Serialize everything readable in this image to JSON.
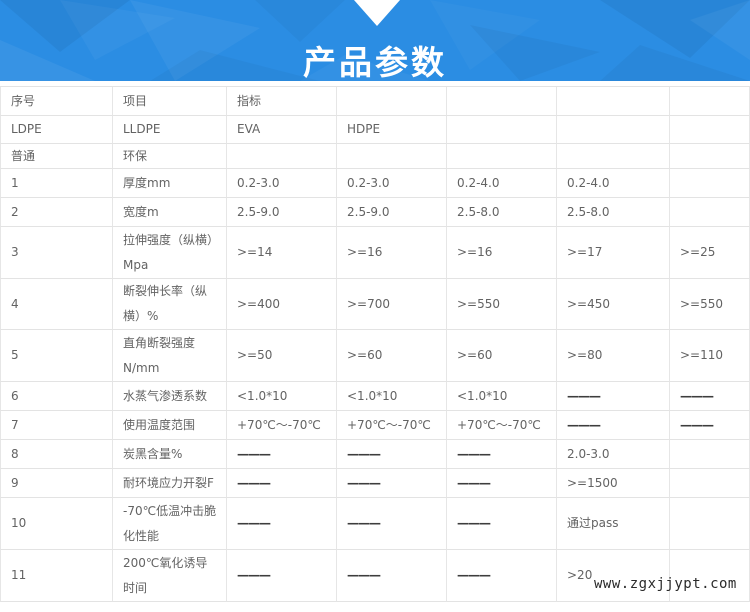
{
  "banner": {
    "title": "产品参数",
    "background_color": "#2b8de3",
    "title_color": "#ffffff",
    "arrow_color": "#ffffff"
  },
  "watermark": {
    "text": "www.zgxjjypt.com",
    "color": "#2a2a2a"
  },
  "table": {
    "rows": [
      [
        "序号",
        "项目",
        "指标",
        "",
        "",
        "",
        ""
      ],
      [
        "LDPE",
        "LLDPE",
        "EVA",
        "HDPE",
        "",
        "",
        ""
      ],
      [
        "普通",
        "环保",
        "",
        "",
        "",
        "",
        ""
      ],
      [
        "1",
        "厚度mm",
        "0.2-3.0",
        "0.2-3.0",
        "0.2-4.0",
        "0.2-4.0",
        ""
      ],
      [
        "2",
        "宽度m",
        "2.5-9.0",
        "2.5-9.0",
        "2.5-8.0",
        "2.5-8.0",
        ""
      ],
      [
        "3",
        "拉伸强度（纵横）Mpa",
        ">=14",
        ">=16",
        ">=16",
        ">=17",
        ">=25"
      ],
      [
        "4",
        "断裂伸长率（纵横）%",
        ">=400",
        ">=700",
        ">=550",
        ">=450",
        ">=550"
      ],
      [
        "5",
        "直角断裂强度N/mm",
        ">=50",
        ">=60",
        ">=60",
        ">=80",
        ">=110"
      ],
      [
        "6",
        "水蒸气渗透系数",
        "<1.0*10",
        "<1.0*10",
        "<1.0*10",
        "———",
        "———"
      ],
      [
        "7",
        "使用温度范围",
        "+70℃～-70℃",
        "+70℃～-70℃",
        "+70℃～-70℃",
        "———",
        "———"
      ],
      [
        "8",
        "炭黑含量%",
        "———",
        "———",
        "———",
        "2.0-3.0",
        ""
      ],
      [
        "9",
        "耐环境应力开裂F",
        "———",
        "———",
        "———",
        ">=1500",
        ""
      ],
      [
        "10",
        "-70℃低温冲击脆化性能",
        "———",
        "———",
        "———",
        "通过pass",
        ""
      ],
      [
        "11",
        "200℃氧化诱导时间",
        "———",
        "———",
        "———",
        ">20",
        ""
      ]
    ]
  }
}
